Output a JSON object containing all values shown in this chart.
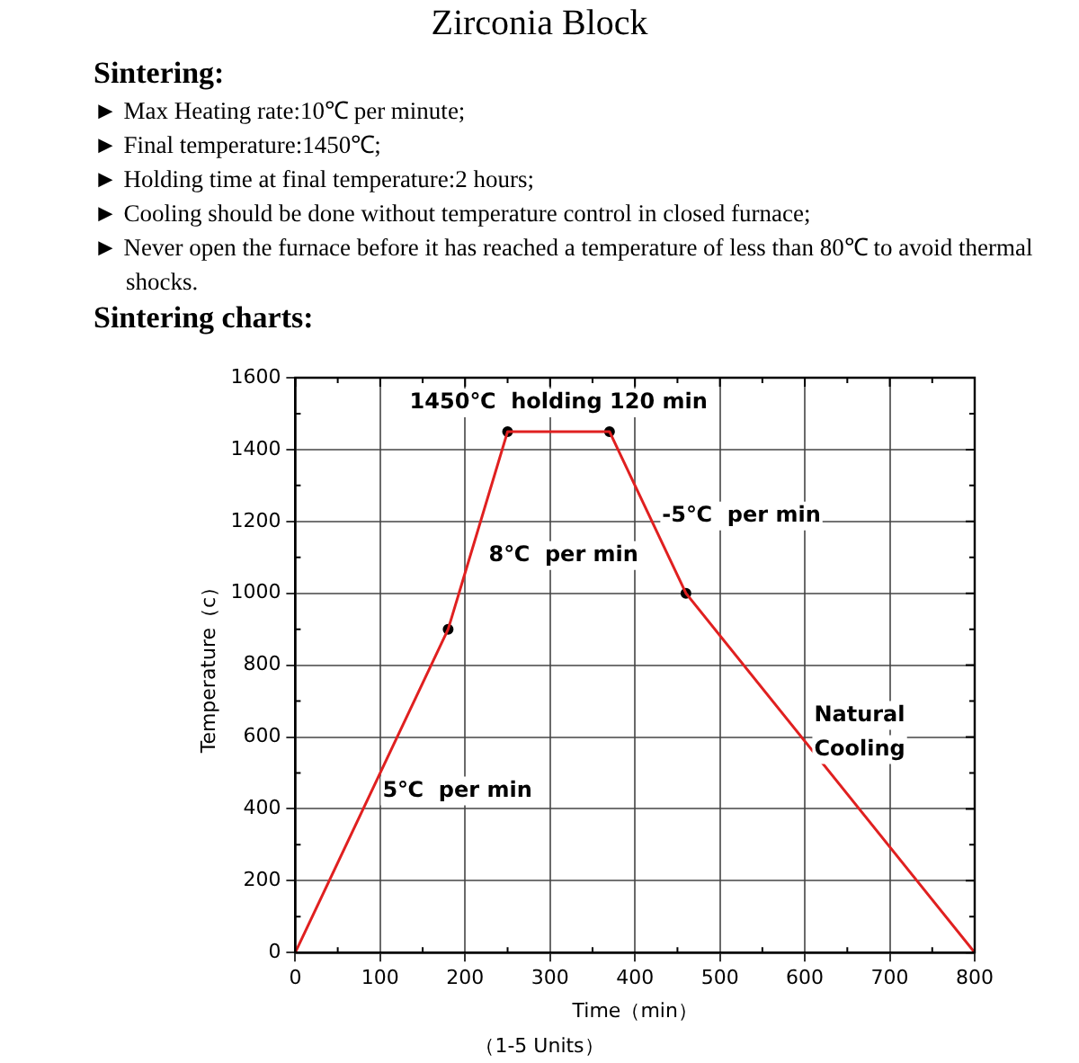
{
  "chart_data": {
    "type": "line",
    "title": "Zirconia Block",
    "annotations": [
      "Sintering:",
      "► Max Heating rate:10℃ per minute;",
      "► Final temperature:1450℃;",
      "► Holding time at final temperature:2 hours;",
      "► Cooling should be done without temperature control in closed furnace;",
      "► Never open the furnace before it has reached a temperature of less than 80℃ to avoid thermal shocks.",
      "Sintering charts:",
      {
        "text": "1450℃  holding 120 min",
        "x": 310,
        "y": 1450
      },
      {
        "text": "8℃  per min",
        "x": 215,
        "y": 1175
      },
      {
        "text": "-5℃  per min",
        "x": 415,
        "y": 1225
      },
      {
        "text": "5℃  per min",
        "x": 90,
        "y": 450
      },
      {
        "text": "Natural\nCooling",
        "x": 630,
        "y": 500
      },
      "（1-5 Units）"
    ],
    "xlabel": "Time（min）",
    "ylabel": "Temperature（c）",
    "series": [
      {
        "type": "line",
        "color": "#e02020",
        "marker": "none",
        "x": [
          0,
          180,
          250,
          370,
          460,
          800
        ],
        "values": [
          0,
          900,
          1450,
          1450,
          1000,
          0
        ]
      },
      {
        "type": "scatter",
        "color": "#000000",
        "marker": "circle",
        "x": [
          180,
          250,
          370,
          460
        ],
        "values": [
          900,
          1450,
          1450,
          1000
        ]
      }
    ],
    "xlim": [
      0,
      800
    ],
    "xticks": [
      0,
      100,
      200,
      300,
      400,
      500,
      600,
      700,
      800
    ],
    "ylim": [
      0,
      1600
    ],
    "yticks": [
      0,
      200,
      400,
      600,
      800,
      1000,
      1200,
      1400,
      1600
    ],
    "grid": true,
    "legend": false
  }
}
